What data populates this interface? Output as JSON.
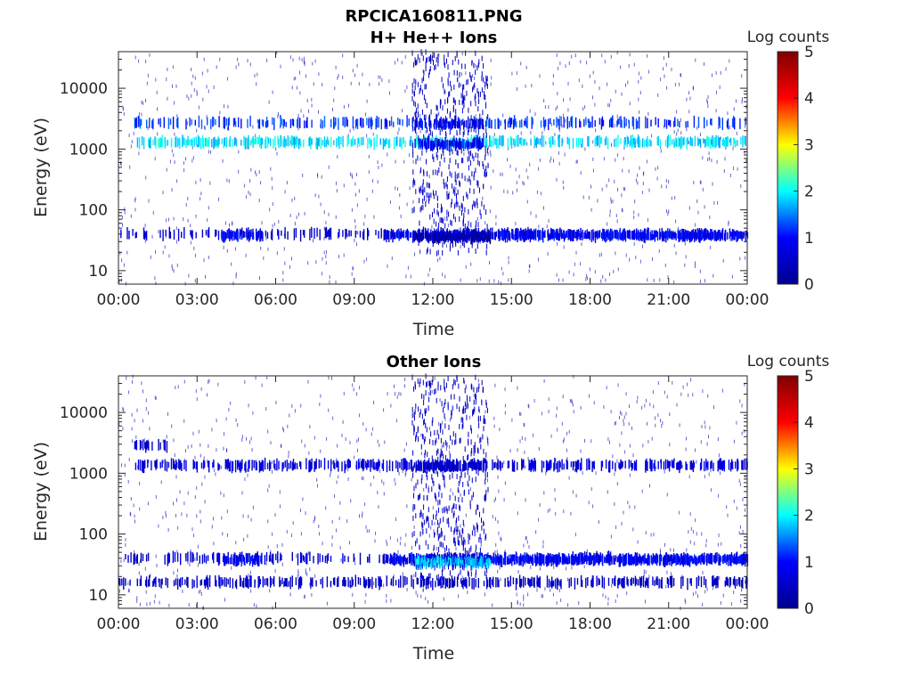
{
  "figure_title": "RPCICA160811.PNG",
  "colors": {
    "colormap": "jet",
    "colormap_stops": [
      "#00008f",
      "#0000ff",
      "#00ffff",
      "#ffff00",
      "#ff0000",
      "#800000"
    ],
    "axes": "#262626"
  },
  "chart_data": [
    {
      "type": "heatmap",
      "title": "H+ He++ Ions",
      "xlabel": "Time",
      "ylabel": "Energy (eV)",
      "x_ticks": [
        "00:00",
        "03:00",
        "06:00",
        "09:00",
        "12:00",
        "15:00",
        "18:00",
        "21:00",
        "00:00"
      ],
      "xlim_hours": [
        0,
        24
      ],
      "y_scale": "log",
      "y_ticks": [
        "10",
        "100",
        "1000",
        "10000"
      ],
      "ylim": [
        6,
        40000
      ],
      "colorbar": {
        "label": "Log counts",
        "ticks": [
          "0",
          "1",
          "2",
          "3",
          "4",
          "5"
        ],
        "range": [
          0,
          5
        ]
      },
      "bands": [
        {
          "t0": 0.6,
          "t1": 24,
          "e": 1300,
          "level": 1.9,
          "density": 0.55
        },
        {
          "t0": 0.6,
          "t1": 24,
          "e": 2700,
          "level": 1.2,
          "density": 0.35
        },
        {
          "t0": 11.3,
          "t1": 13.9,
          "e": 1200,
          "level": 1.0,
          "density": 0.9
        },
        {
          "t0": 11.3,
          "t1": 13.9,
          "e": 2600,
          "level": 0.9,
          "density": 0.7
        },
        {
          "t0": 0.0,
          "t1": 24,
          "e": 40,
          "level": 0.6,
          "density": 0.3
        },
        {
          "t0": 3.8,
          "t1": 5.5,
          "e": 38,
          "level": 0.9,
          "density": 0.75
        },
        {
          "t0": 10.2,
          "t1": 24,
          "e": 38,
          "level": 0.9,
          "density": 0.85
        },
        {
          "t0": 11.3,
          "t1": 14.2,
          "e": 36,
          "level": 0.3,
          "density": 0.95
        }
      ]
    },
    {
      "type": "heatmap",
      "title": "Other Ions",
      "xlabel": "Time",
      "ylabel": "Energy (eV)",
      "x_ticks": [
        "00:00",
        "03:00",
        "06:00",
        "09:00",
        "12:00",
        "15:00",
        "18:00",
        "21:00",
        "00:00"
      ],
      "xlim_hours": [
        0,
        24
      ],
      "y_scale": "log",
      "y_ticks": [
        "10",
        "100",
        "1000",
        "10000"
      ],
      "ylim": [
        6,
        40000
      ],
      "colorbar": {
        "label": "Log counts",
        "ticks": [
          "0",
          "1",
          "2",
          "3",
          "4",
          "5"
        ],
        "range": [
          0,
          5
        ]
      },
      "bands": [
        {
          "t0": 0.6,
          "t1": 24,
          "e": 1350,
          "level": 0.7,
          "density": 0.45
        },
        {
          "t0": 0.6,
          "t1": 2.0,
          "e": 2800,
          "level": 0.6,
          "density": 0.4
        },
        {
          "t0": 11.3,
          "t1": 13.9,
          "e": 1300,
          "level": 0.5,
          "density": 0.8
        },
        {
          "t0": 0.0,
          "t1": 24,
          "e": 16,
          "level": 0.5,
          "density": 0.4
        },
        {
          "t0": 0.0,
          "t1": 24,
          "e": 40,
          "level": 0.6,
          "density": 0.3
        },
        {
          "t0": 3.8,
          "t1": 5.5,
          "e": 38,
          "level": 0.9,
          "density": 0.7
        },
        {
          "t0": 10.2,
          "t1": 24,
          "e": 38,
          "level": 0.9,
          "density": 0.85
        },
        {
          "t0": 11.3,
          "t1": 14.2,
          "e": 34,
          "level": 1.8,
          "density": 0.9
        }
      ]
    }
  ]
}
